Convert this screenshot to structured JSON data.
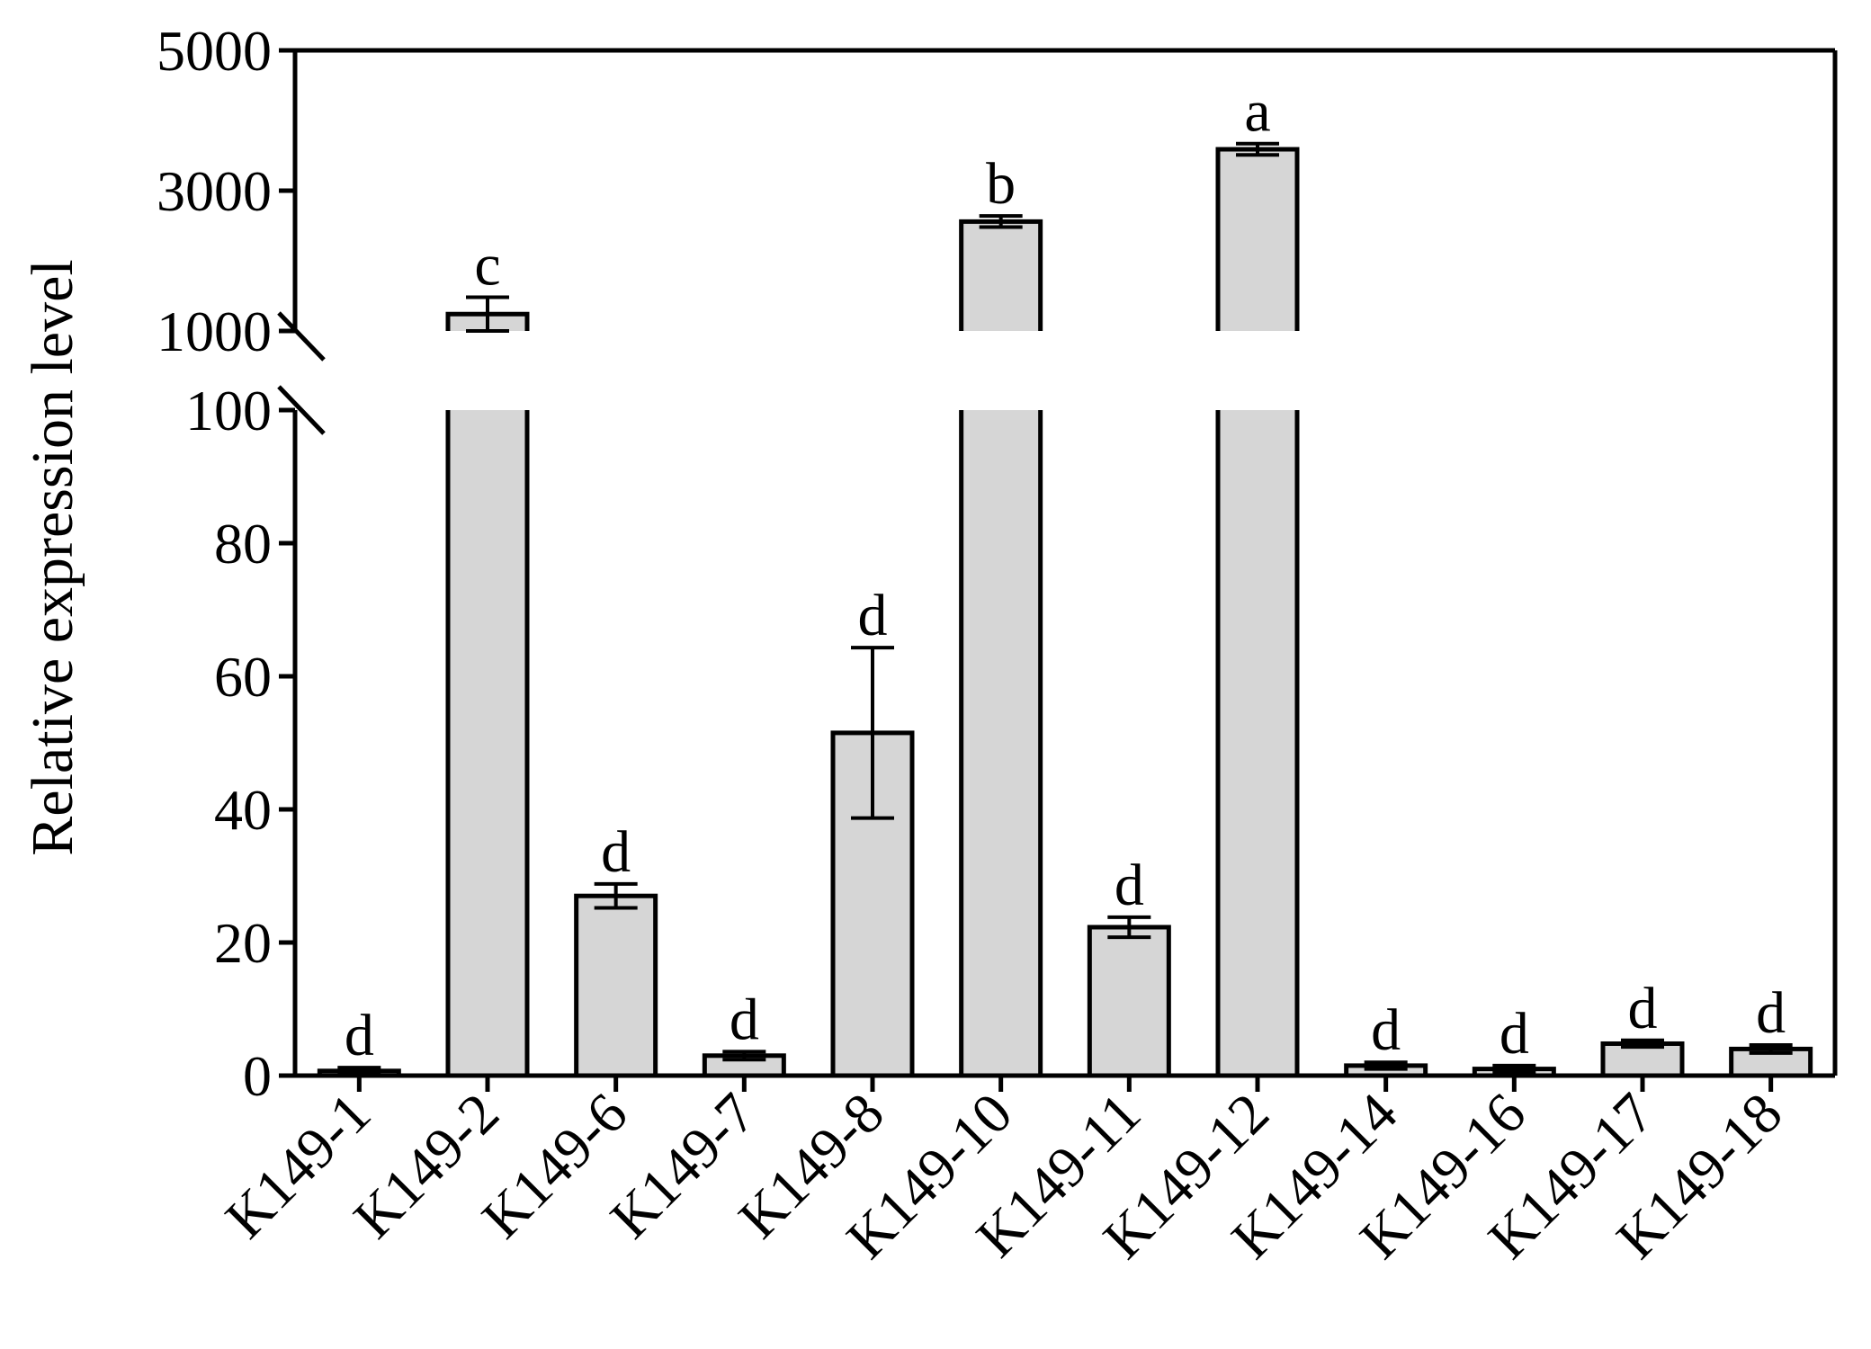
{
  "chart_data": {
    "type": "bar",
    "title": "",
    "xlabel": "",
    "ylabel": "Relative expression level",
    "y_axis": "broken",
    "lower_segment": {
      "ylim": [
        0,
        100
      ],
      "ticks": [
        "0",
        "20",
        "40",
        "60",
        "80",
        "100"
      ]
    },
    "upper_segment": {
      "ylim": [
        1000,
        5000
      ],
      "ticks": [
        "1000",
        "3000",
        "5000"
      ]
    },
    "grid": false,
    "legend": "none",
    "bar_fill": "#d6d6d6",
    "bar_stroke": "#000000",
    "categories": [
      "K149-1",
      "K149-2",
      "K149-6",
      "K149-7",
      "K149-8",
      "K149-10",
      "K149-11",
      "K149-12",
      "K149-14",
      "K149-16",
      "K149-17",
      "K149-18"
    ],
    "values": [
      0.7,
      1240,
      27,
      3,
      51.5,
      2560,
      22.3,
      3590,
      1.5,
      1,
      4.8,
      4
    ],
    "error": [
      0.5,
      240,
      1.8,
      0.6,
      12.8,
      80,
      1.5,
      80,
      0.5,
      0.5,
      0.5,
      0.6
    ],
    "significance_labels": [
      "d",
      "c",
      "d",
      "d",
      "d",
      "b",
      "d",
      "a",
      "d",
      "d",
      "d",
      "d"
    ]
  }
}
